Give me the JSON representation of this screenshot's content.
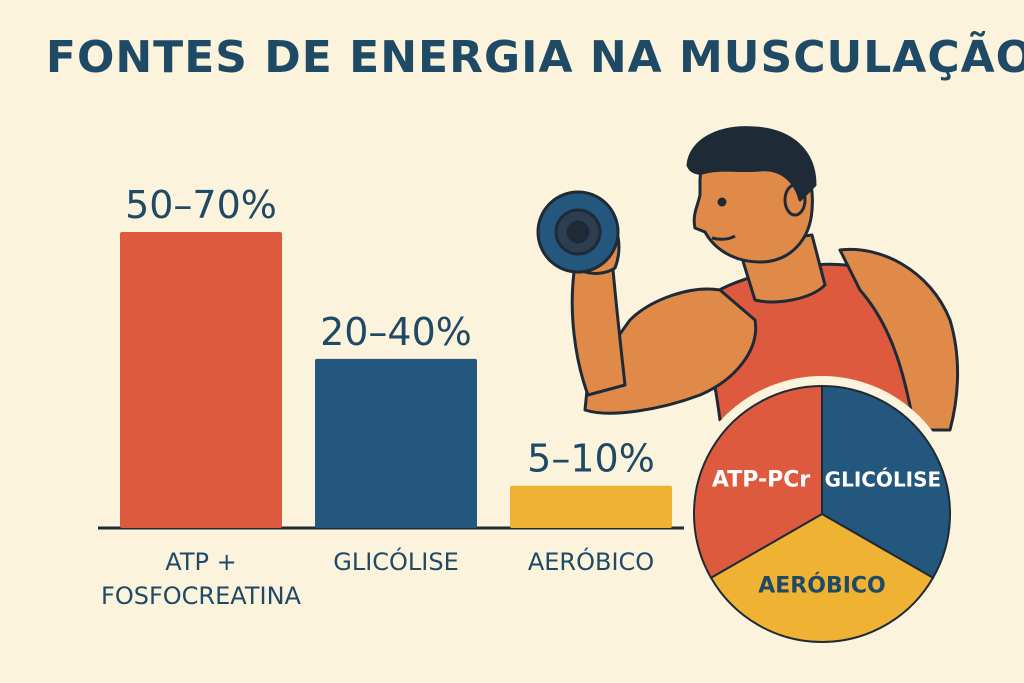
{
  "title": "FONTES DE ENERGIA NA MUSCULAÇÃO",
  "colors": {
    "background": "#fbf3dc",
    "title": "#1f4a66",
    "atp": "#de5a3e",
    "glicolise": "#24577d",
    "aerobico": "#f0b233",
    "skin": "#e08a4a",
    "outline": "#1e2a36"
  },
  "chart_data": [
    {
      "type": "bar",
      "categories": [
        "ATP +\nFOSFOCREATINA",
        "GLICÓLISE",
        "AERÓBICO"
      ],
      "values": [
        [
          50,
          70
        ],
        [
          20,
          40
        ],
        [
          5,
          10
        ]
      ],
      "value_labels": [
        "50–70%",
        "20–40%",
        "5–10%"
      ],
      "colors": [
        "#de5a3e",
        "#24577d",
        "#f0b233"
      ],
      "ylim": [
        0,
        75
      ],
      "grid": false
    },
    {
      "type": "pie",
      "labels": [
        "ATP-PCr",
        "GLICÓLISE",
        "AERÓBICO"
      ],
      "values": [
        33.3,
        33.3,
        33.4
      ],
      "colors": [
        "#de5a3e",
        "#24577d",
        "#f0b233"
      ]
    }
  ],
  "illustration": {
    "subject": "athlete-curling-dumbbell",
    "icons": [
      "dumbbell-icon",
      "athlete-icon"
    ]
  }
}
